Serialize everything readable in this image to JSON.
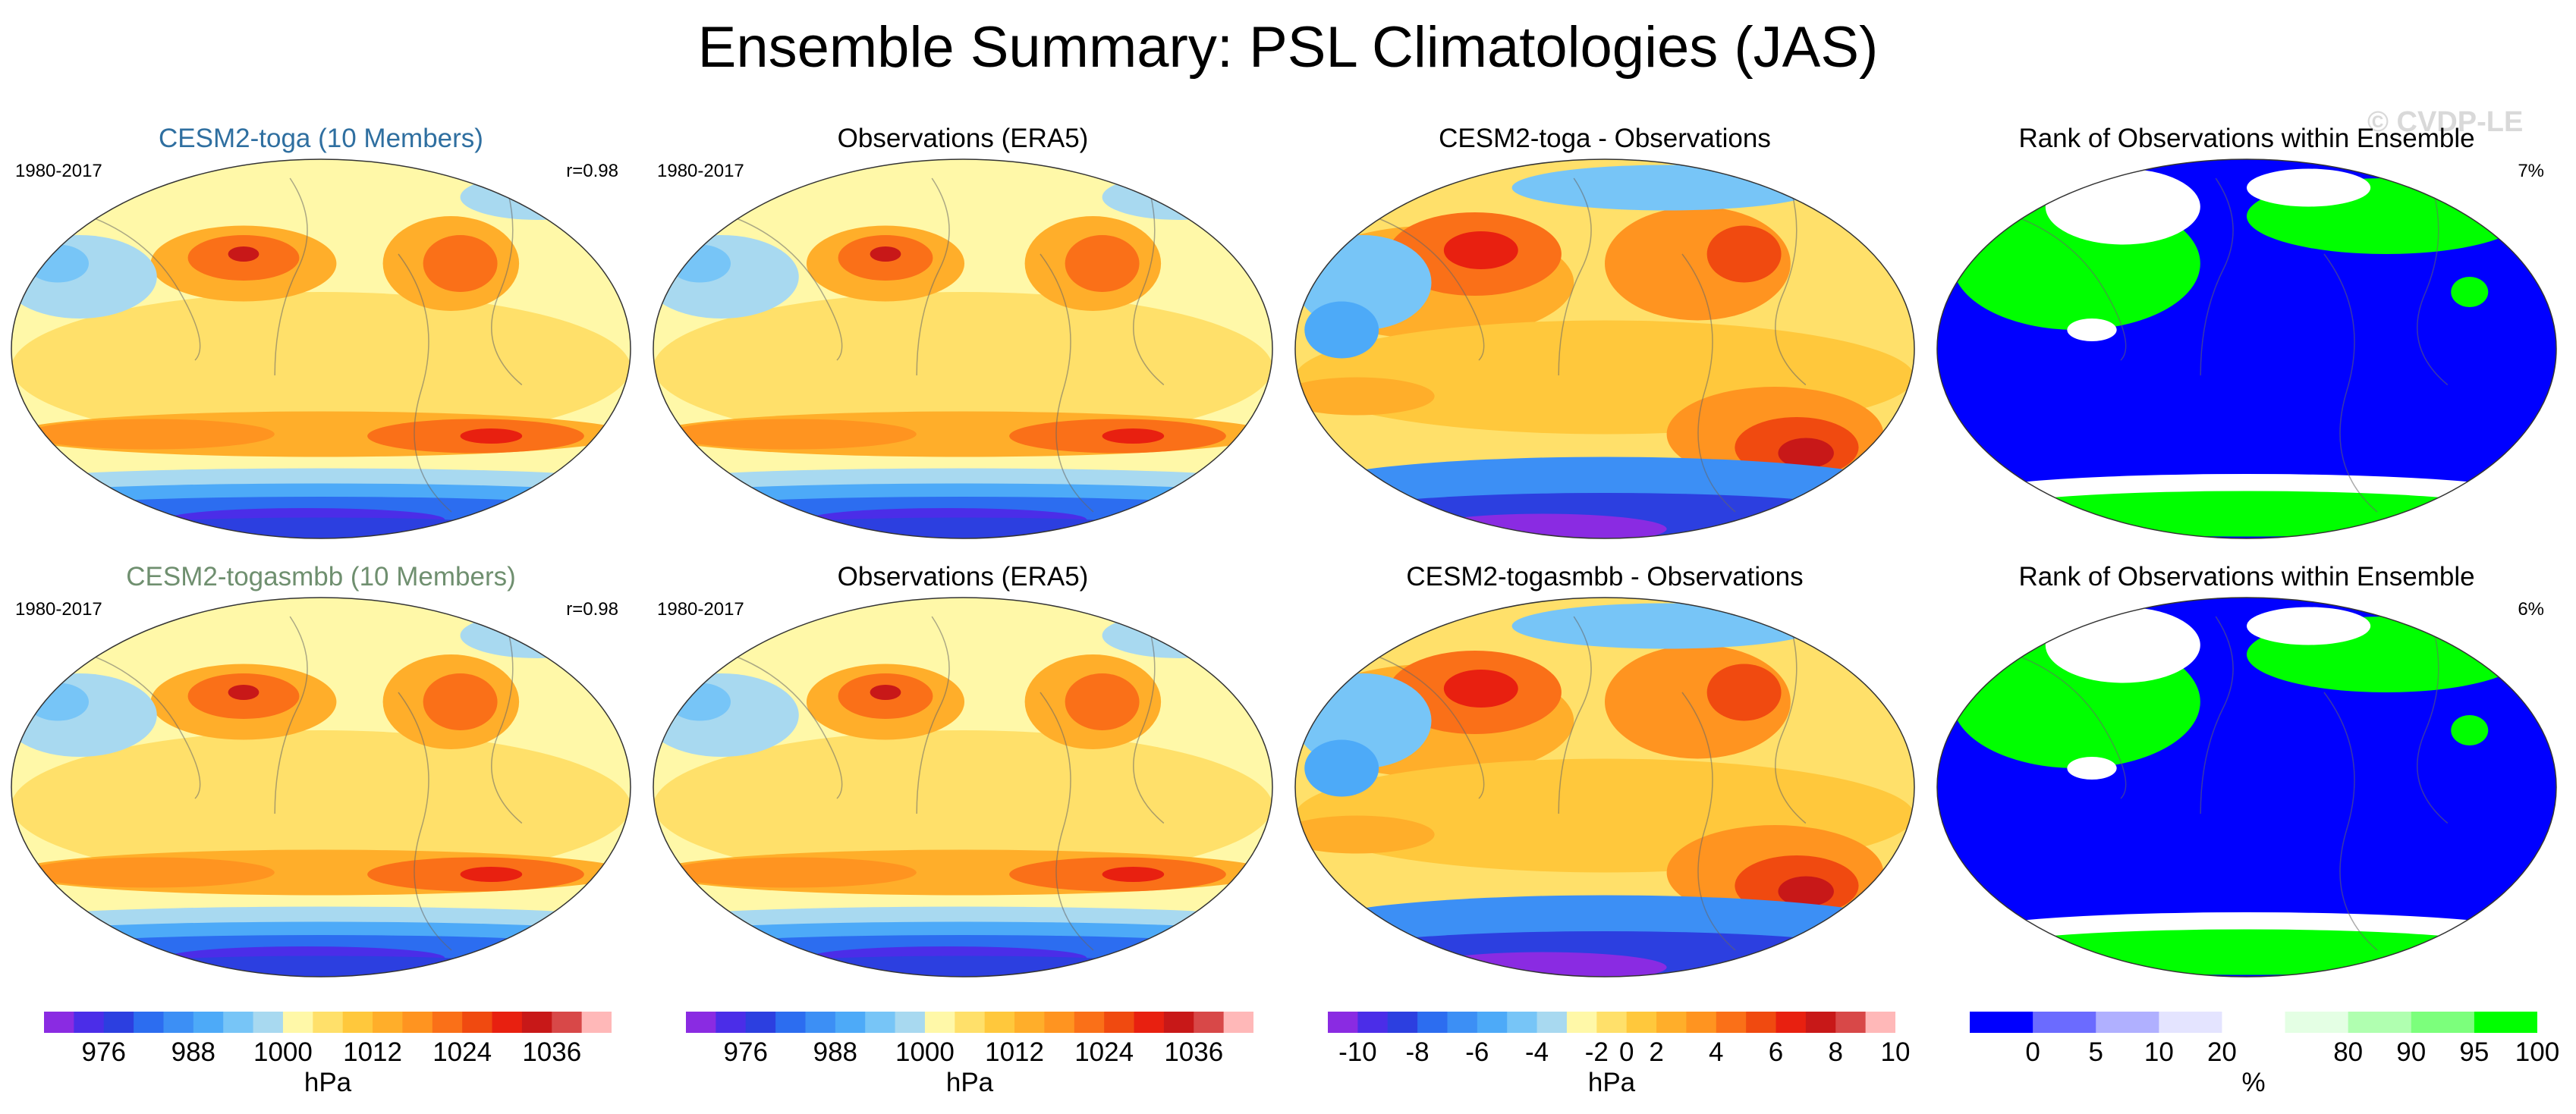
{
  "title": "Ensemble Summary: PSL Climatologies (JAS)",
  "watermark": "© CVDP-LE",
  "colors": {
    "seq": [
      "#8a2be2",
      "#4b2de8",
      "#2c3fe0",
      "#2c6df0",
      "#3c8ff5",
      "#4daaf8",
      "#77c5f7",
      "#a8d9f0",
      "#fff8a8",
      "#ffe06a",
      "#ffc83c",
      "#ffae2a",
      "#ff9420",
      "#fa7018",
      "#f04a10",
      "#e82010",
      "#c81818",
      "#d84848",
      "#ffb8b8"
    ],
    "rank": [
      "#0000ff",
      "#6b6bff",
      "#b0b0ff",
      "#e4e4ff",
      "#ffffff",
      "#e4ffe4",
      "#b0ffb0",
      "#7cff7c",
      "#00ff00"
    ]
  },
  "rows": [
    {
      "panels": [
        {
          "title": "CESM2-toga (10 Members)",
          "title_color": "#2f6fa0",
          "period": "1980-2017",
          "stat": "r=0.98",
          "kind": "model"
        },
        {
          "title": "Observations (ERA5)",
          "title_color": "#000000",
          "period": "1980-2017",
          "stat": "",
          "kind": "obs"
        },
        {
          "title": "CESM2-toga - Observations",
          "title_color": "#000000",
          "period": "",
          "stat": "",
          "kind": "diff"
        },
        {
          "title": "Rank of Observations within Ensemble",
          "title_color": "#000000",
          "period": "",
          "stat": "7%",
          "kind": "rank"
        }
      ]
    },
    {
      "panels": [
        {
          "title": "CESM2-togasmbb (10 Members)",
          "title_color": "#6f8f6f",
          "period": "1980-2017",
          "stat": "r=0.98",
          "kind": "model"
        },
        {
          "title": "Observations (ERA5)",
          "title_color": "#000000",
          "period": "1980-2017",
          "stat": "",
          "kind": "obs"
        },
        {
          "title": "CESM2-togasmbb - Observations",
          "title_color": "#000000",
          "period": "",
          "stat": "",
          "kind": "diff"
        },
        {
          "title": "Rank of Observations within Ensemble",
          "title_color": "#000000",
          "period": "",
          "stat": "6%",
          "kind": "rank"
        }
      ]
    }
  ],
  "colorbars": [
    {
      "ticks": [
        "976",
        "988",
        "1000",
        "1012",
        "1024",
        "1036"
      ],
      "tick_bins": [
        2,
        5,
        8,
        11,
        14,
        17
      ],
      "nbins": 19,
      "unit": "hPa",
      "palette": "seq"
    },
    {
      "ticks": [
        "976",
        "988",
        "1000",
        "1012",
        "1024",
        "1036"
      ],
      "tick_bins": [
        2,
        5,
        8,
        11,
        14,
        17
      ],
      "nbins": 19,
      "unit": "hPa",
      "palette": "seq"
    },
    {
      "ticks": [
        "-10",
        "-8",
        "-6",
        "-4",
        "-2",
        "0",
        "2",
        "4",
        "6",
        "8",
        "10"
      ],
      "tick_bins": [
        1,
        3,
        5,
        7,
        9,
        10,
        11,
        13,
        15,
        17,
        19
      ],
      "nbins": 19,
      "unit": "hPa",
      "palette": "seq",
      "tick_edges": true
    },
    {
      "ticks": [
        "0",
        "5",
        "10",
        "20",
        "80",
        "90",
        "95",
        "100"
      ],
      "tick_bins": [
        1,
        2,
        3,
        4,
        6,
        7,
        8,
        9
      ],
      "nbins": 9,
      "unit": "%",
      "palette": "rank",
      "tick_edges": true
    }
  ],
  "chart_data": [
    {
      "type": "heatmap",
      "title": "CESM2-toga (10 Members)",
      "variable": "PSL",
      "season": "JAS",
      "period": "1980-2017",
      "pattern_correlation": 0.98,
      "units": "hPa",
      "colorbar_ticks": [
        976,
        988,
        1000,
        1012,
        1024,
        1036
      ]
    },
    {
      "type": "heatmap",
      "title": "Observations (ERA5)",
      "variable": "PSL",
      "season": "JAS",
      "period": "1980-2017",
      "units": "hPa",
      "colorbar_ticks": [
        976,
        988,
        1000,
        1012,
        1024,
        1036
      ]
    },
    {
      "type": "heatmap",
      "title": "CESM2-toga - Observations",
      "variable": "PSL difference",
      "units": "hPa",
      "colorbar_ticks": [
        -10,
        -8,
        -6,
        -4,
        -2,
        0,
        2,
        4,
        6,
        8,
        10
      ]
    },
    {
      "type": "heatmap",
      "title": "Rank of Observations within Ensemble",
      "units": "%",
      "area_fraction_label": "7%",
      "colorbar_ticks": [
        0,
        5,
        10,
        20,
        80,
        90,
        95,
        100
      ]
    },
    {
      "type": "heatmap",
      "title": "CESM2-togasmbb (10 Members)",
      "variable": "PSL",
      "season": "JAS",
      "period": "1980-2017",
      "pattern_correlation": 0.98,
      "units": "hPa",
      "colorbar_ticks": [
        976,
        988,
        1000,
        1012,
        1024,
        1036
      ]
    },
    {
      "type": "heatmap",
      "title": "Observations (ERA5)",
      "variable": "PSL",
      "season": "JAS",
      "period": "1980-2017",
      "units": "hPa",
      "colorbar_ticks": [
        976,
        988,
        1000,
        1012,
        1024,
        1036
      ]
    },
    {
      "type": "heatmap",
      "title": "CESM2-togasmbb - Observations",
      "variable": "PSL difference",
      "units": "hPa",
      "colorbar_ticks": [
        -10,
        -8,
        -6,
        -4,
        -2,
        0,
        2,
        4,
        6,
        8,
        10
      ]
    },
    {
      "type": "heatmap",
      "title": "Rank of Observations within Ensemble",
      "units": "%",
      "area_fraction_label": "6%",
      "colorbar_ticks": [
        0,
        5,
        10,
        20,
        80,
        90,
        95,
        100
      ]
    }
  ]
}
